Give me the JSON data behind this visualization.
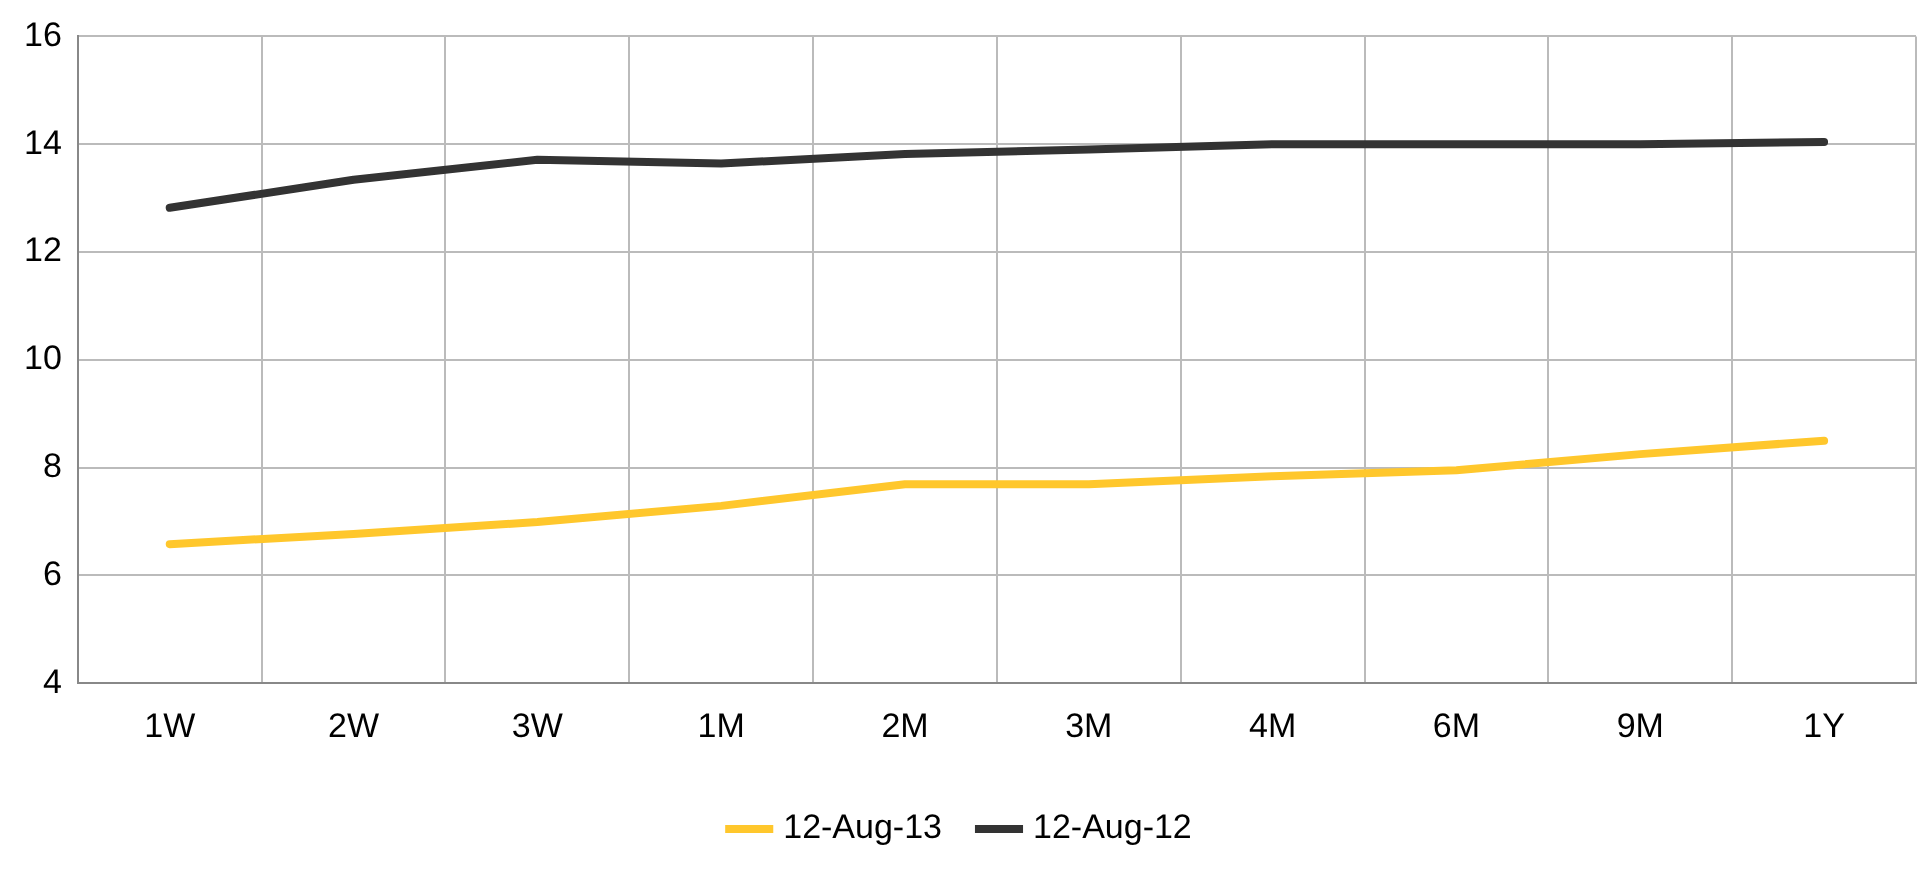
{
  "chart_data": {
    "type": "line",
    "categories": [
      "1W",
      "2W",
      "3W",
      "1M",
      "2M",
      "3M",
      "4M",
      "6M",
      "9M",
      "1Y"
    ],
    "series": [
      {
        "name": "12-Aug-13",
        "color": "#ffc72c",
        "values": [
          6.58,
          6.77,
          6.99,
          7.29,
          7.69,
          7.69,
          7.84,
          7.95,
          8.25,
          8.5
        ]
      },
      {
        "name": "12-Aug-12",
        "color": "#333333",
        "values": [
          12.82,
          13.34,
          13.71,
          13.64,
          13.82,
          13.9,
          14.0,
          14.0,
          14.0,
          14.04
        ]
      }
    ],
    "ylim": [
      4,
      16
    ],
    "yticks": [
      4,
      6,
      8,
      10,
      12,
      14,
      16
    ],
    "grid": true,
    "legend": "bottom",
    "marker": "none",
    "line_style": "solid"
  }
}
